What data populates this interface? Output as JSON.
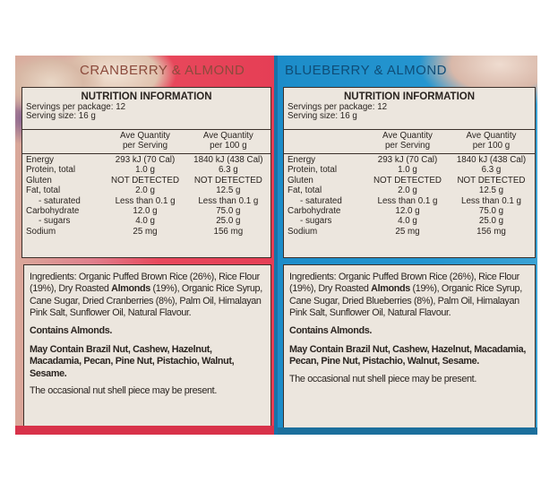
{
  "colors": {
    "cranberry_panel": "#e53e55",
    "blueberry_panel": "#2596d0",
    "label_background": "#ece6de",
    "label_border": "#3b302a",
    "text": "#2a2420"
  },
  "panels": [
    {
      "flavor": "CRANBERRY & ALMOND",
      "nutrition": {
        "title": "NUTRITION INFORMATION",
        "servings_per_package": "Servings per package: 12",
        "serving_size": "Serving size: 16 g",
        "col_per_serving_1": "Ave Quantity",
        "col_per_serving_2": "per Serving",
        "col_per_100_1": "Ave Quantity",
        "col_per_100_2": "per 100 g",
        "rows": [
          {
            "label": "Energy",
            "per_serving": "293 kJ (70 Cal)",
            "per_100g": "1840 kJ (438 Cal)"
          },
          {
            "label": "Protein, total",
            "per_serving": "1.0 g",
            "per_100g": "6.3 g"
          },
          {
            "label": "Gluten",
            "per_serving": "NOT DETECTED",
            "per_100g": "NOT DETECTED"
          },
          {
            "label": "Fat, total",
            "per_serving": "2.0 g",
            "per_100g": "12.5 g"
          },
          {
            "label": "- saturated",
            "per_serving": "Less than 0.1 g",
            "per_100g": "Less than 0.1 g"
          },
          {
            "label": "Carbohydrate",
            "per_serving": "12.0 g",
            "per_100g": "75.0 g"
          },
          {
            "label": "- sugars",
            "per_serving": "4.0 g",
            "per_100g": "25.0 g"
          },
          {
            "label": "Sodium",
            "per_serving": "25 mg",
            "per_100g": "156 mg"
          }
        ]
      },
      "ingredients": {
        "text_before_bold": "Ingredients: Organic Puffed Brown Rice (26%), Rice Flour (19%), Dry Roasted ",
        "bold": "Almonds",
        "text_after_bold": " (19%), Organic Rice Syrup, Cane Sugar, Dried Cranberries (8%), Palm Oil, Himalayan Pink Salt, Sunflower Oil, Natural Flavour.",
        "contains": "Contains Almonds.",
        "may_contain": "May Contain Brazil Nut, Cashew, Hazelnut, Macadamia, Pecan, Pine Nut, Pistachio, Walnut, Sesame.",
        "shell_note": "The occasional nut shell piece may be present."
      }
    },
    {
      "flavor": "BLUEBERRY & ALMOND",
      "nutrition": {
        "title": "NUTRITION INFORMATION",
        "servings_per_package": "Servings per package: 12",
        "serving_size": "Serving size: 16 g",
        "col_per_serving_1": "Ave Quantity",
        "col_per_serving_2": "per Serving",
        "col_per_100_1": "Ave Quantity",
        "col_per_100_2": "per 100 g",
        "rows": [
          {
            "label": "Energy",
            "per_serving": "293 kJ (70 Cal)",
            "per_100g": "1840 kJ (438 Cal)"
          },
          {
            "label": "Protein, total",
            "per_serving": "1.0 g",
            "per_100g": "6.3 g"
          },
          {
            "label": "Gluten",
            "per_serving": "NOT DETECTED",
            "per_100g": "NOT DETECTED"
          },
          {
            "label": "Fat, total",
            "per_serving": "2.0 g",
            "per_100g": "12.5 g"
          },
          {
            "label": "- saturated",
            "per_serving": "Less than 0.1 g",
            "per_100g": "Less than 0.1 g"
          },
          {
            "label": "Carbohydrate",
            "per_serving": "12.0 g",
            "per_100g": "75.0 g"
          },
          {
            "label": "- sugars",
            "per_serving": "4.0 g",
            "per_100g": "25.0 g"
          },
          {
            "label": "Sodium",
            "per_serving": "25 mg",
            "per_100g": "156 mg"
          }
        ]
      },
      "ingredients": {
        "text_before_bold": "Ingredients: Organic Puffed Brown Rice (26%), Rice Flour (19%), Dry Roasted ",
        "bold": "Almonds",
        "text_after_bold": " (19%), Organic Rice Syrup, Cane Sugar, Dried Blueberries (8%), Palm Oil, Himalayan Pink Salt, Sunflower Oil, Natural Flavour.",
        "contains": "Contains Almonds.",
        "may_contain": "May Contain Brazil Nut, Cashew, Hazelnut, Macadamia, Pecan, Pine Nut, Pistachio, Walnut, Sesame.",
        "shell_note": "The occasional nut shell piece may be present."
      }
    }
  ]
}
